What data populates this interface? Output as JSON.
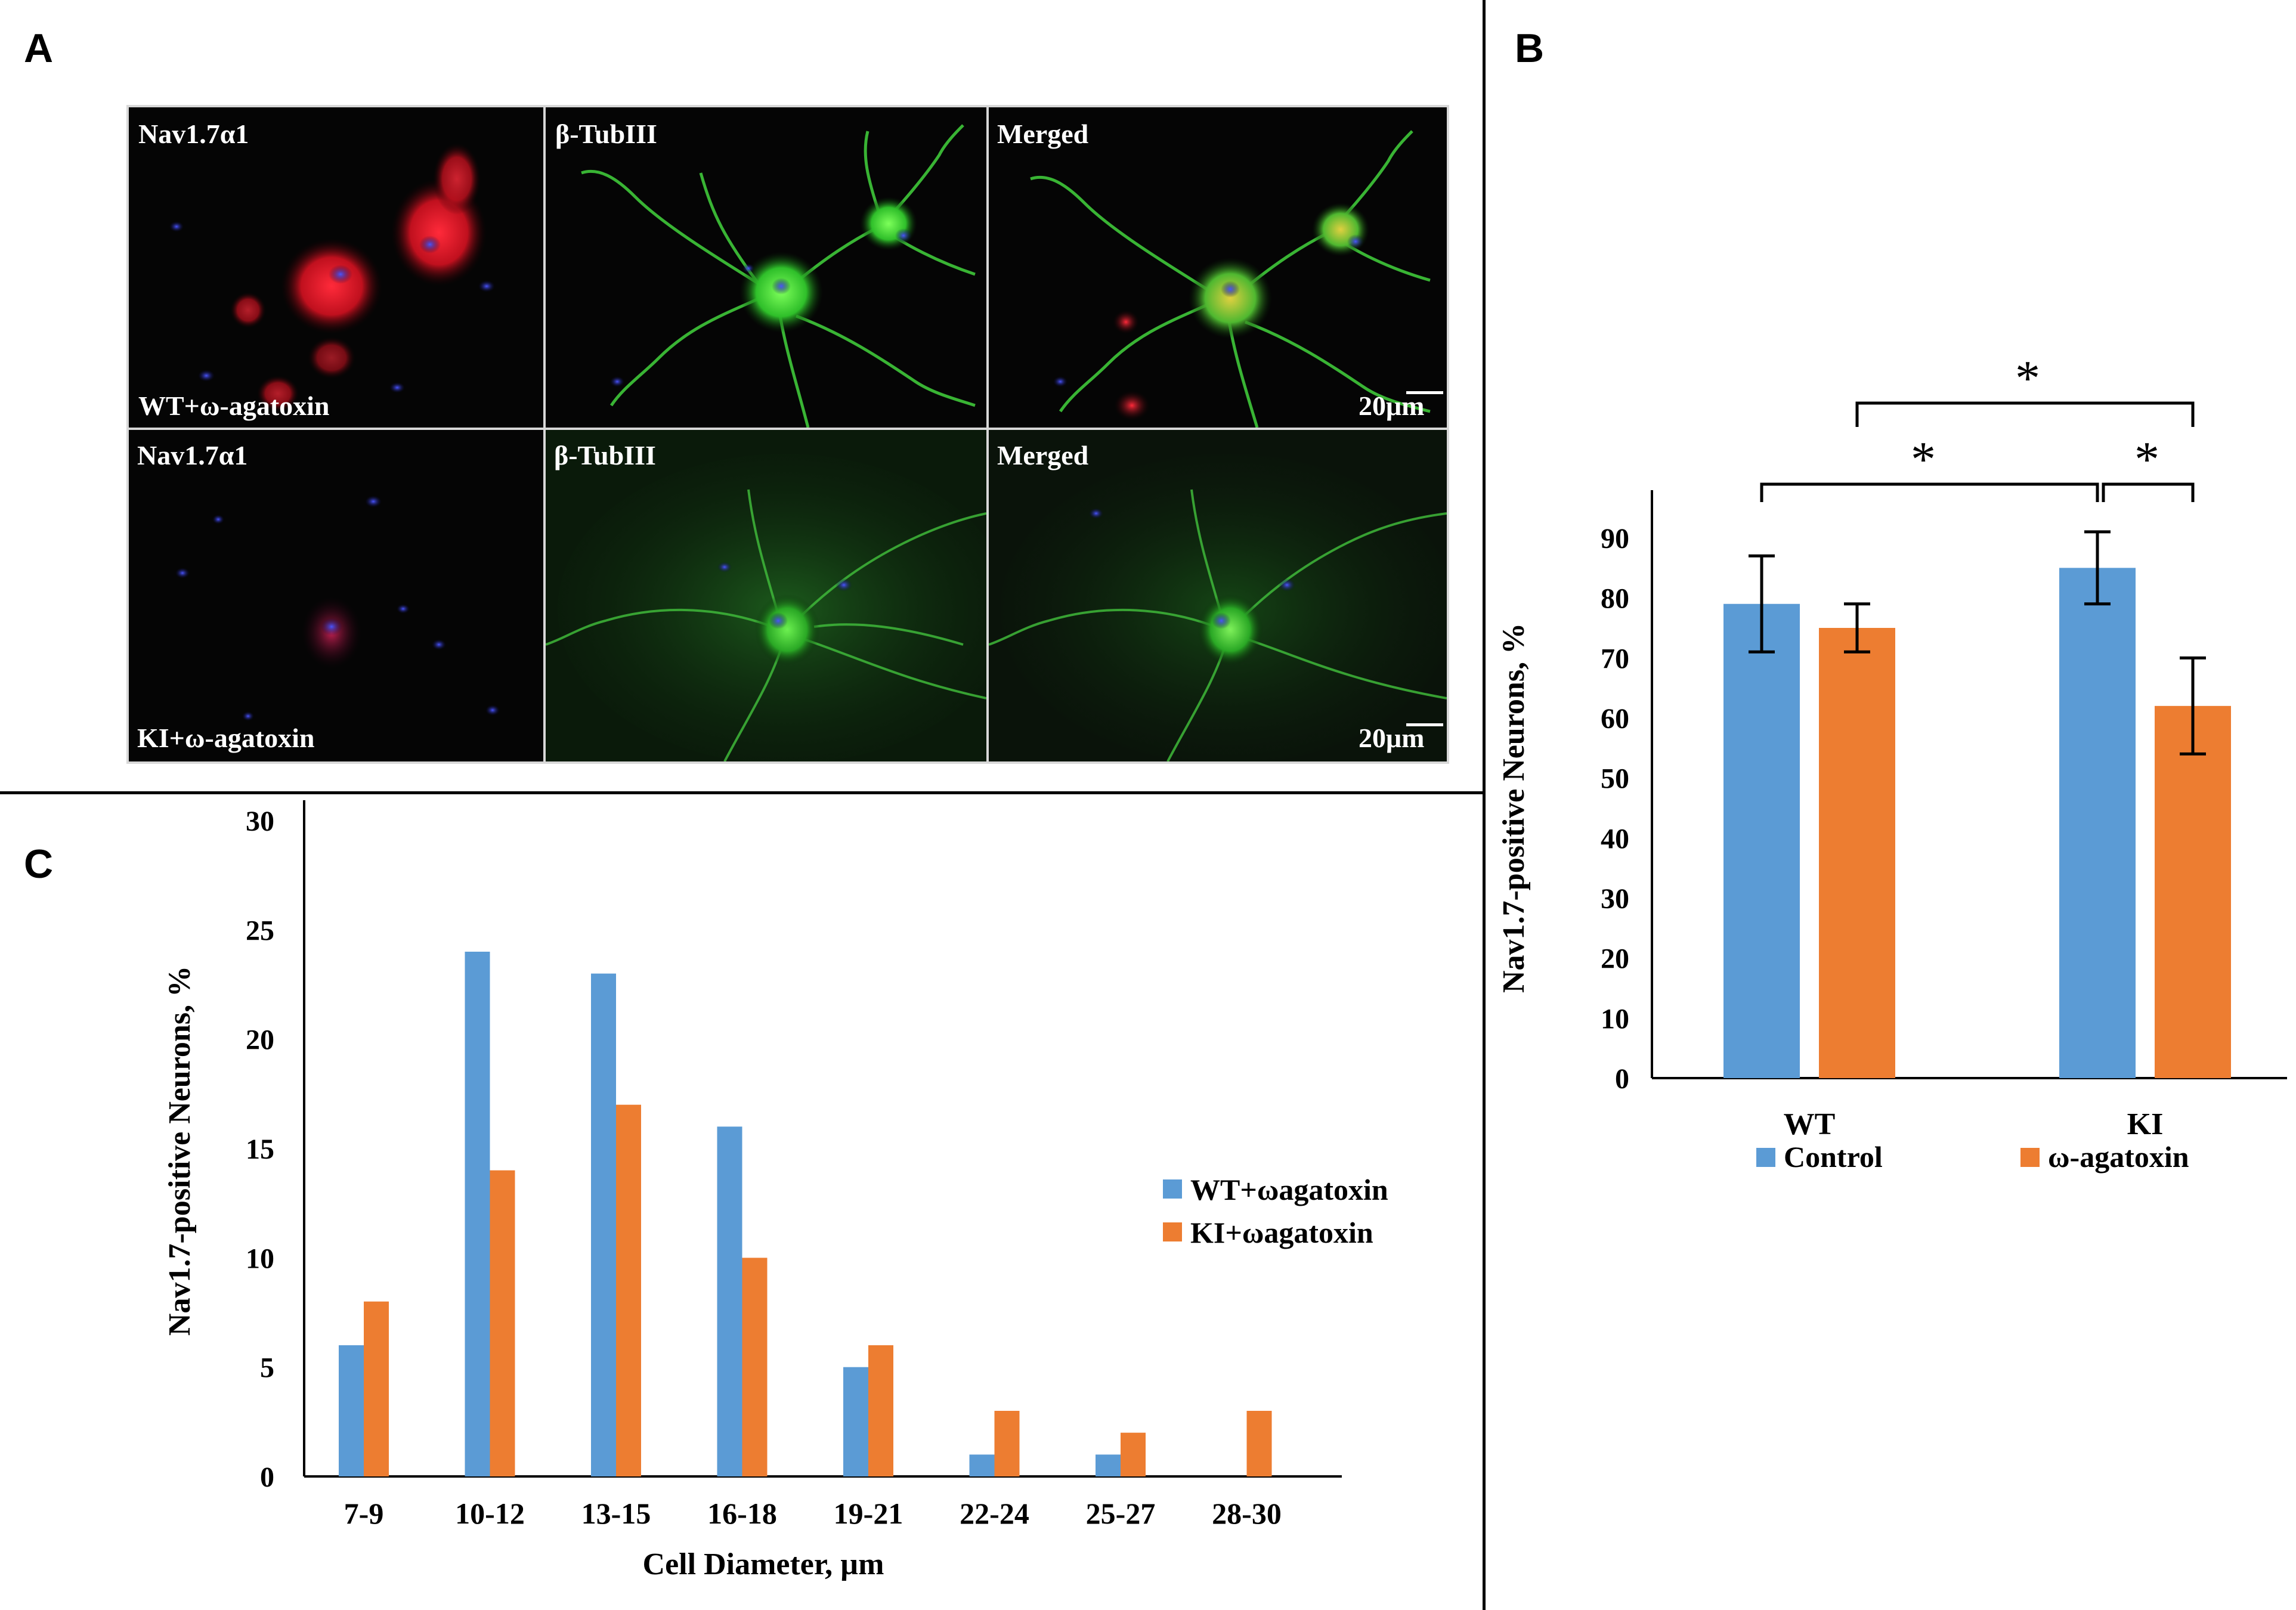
{
  "panels": {
    "a": "A",
    "b": "B",
    "c": "C"
  },
  "micrographs": {
    "row1": {
      "nav_label": "Nav1.7α1",
      "tub_label": "β-TubIII",
      "merged_label": "Merged",
      "condition": "WT+ω-agatoxin",
      "scale": "20μm"
    },
    "row2": {
      "nav_label": "Nav1.7α1",
      "tub_label": "β-TubIII",
      "merged_label": "Merged",
      "condition": "KI+ω-agatoxin",
      "scale": "20μm"
    }
  },
  "colors": {
    "blue": "#5b9bd5",
    "orange": "#ed7d31"
  },
  "chart_data": [
    {
      "panel": "B",
      "type": "bar",
      "categories": [
        "WT",
        "KI"
      ],
      "series": [
        {
          "name": "Control",
          "values": [
            79,
            85
          ],
          "errors": [
            8,
            6
          ]
        },
        {
          "name": "ω-agatoxin",
          "values": [
            75,
            62
          ],
          "errors": [
            4,
            8
          ]
        }
      ],
      "ylabel": "Nav1.7-positive Neurons, %",
      "ylim": [
        0,
        90
      ],
      "yticks": [
        "0",
        "10",
        "20",
        "30",
        "40",
        "50",
        "60",
        "70",
        "80",
        "90"
      ],
      "significance": [
        "*",
        "*",
        "*"
      ],
      "legend_position": "bottom"
    },
    {
      "panel": "C",
      "type": "bar",
      "categories": [
        "7-9",
        "10-12",
        "13-15",
        "16-18",
        "19-21",
        "22-24",
        "25-27",
        "28-30"
      ],
      "series": [
        {
          "name": "WT+ωagatoxin",
          "values": [
            6,
            24,
            23,
            16,
            5,
            1,
            1,
            0
          ]
        },
        {
          "name": "KI+ωagatoxin",
          "values": [
            8,
            14,
            17,
            10,
            6,
            3,
            2,
            3
          ]
        }
      ],
      "xlabel": "Cell Diameter, µm",
      "ylabel": "Nav1.7-positive Neurons, %",
      "ylim": [
        0,
        30
      ],
      "yticks": [
        "0",
        "5",
        "10",
        "15",
        "20",
        "25",
        "30"
      ],
      "legend_position": "right"
    }
  ]
}
